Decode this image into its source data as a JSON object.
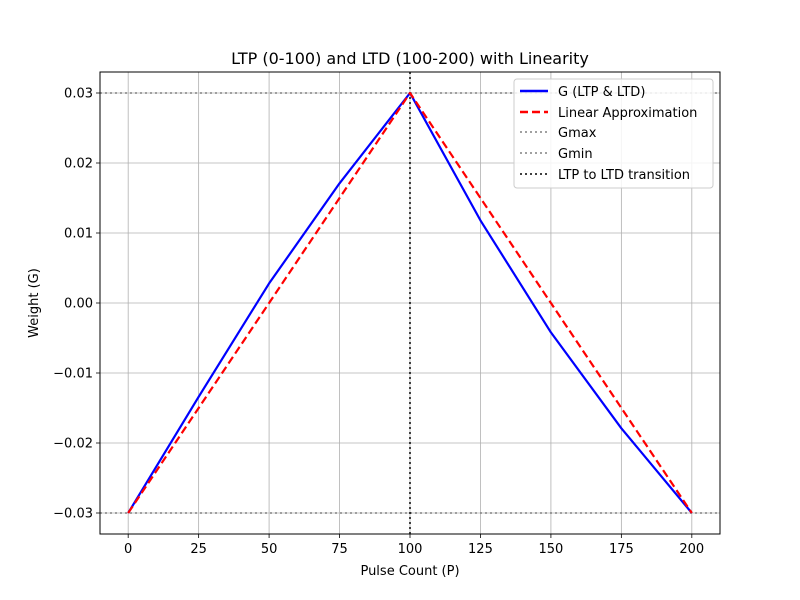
{
  "chart_data": {
    "type": "line",
    "title": "LTP (0-100) and LTD (100-200) with Linearity",
    "xlabel": "Pulse Count (P)",
    "ylabel": "Weight (G)",
    "xlim": [
      -10,
      210
    ],
    "ylim": [
      -0.033,
      0.033
    ],
    "xticks": [
      0,
      25,
      50,
      75,
      100,
      125,
      150,
      175,
      200
    ],
    "xtick_labels": [
      "0",
      "25",
      "50",
      "75",
      "100",
      "125",
      "150",
      "175",
      "200"
    ],
    "yticks": [
      -0.03,
      -0.02,
      -0.01,
      0.0,
      0.01,
      0.02,
      0.03
    ],
    "ytick_labels": [
      "−0.03",
      "−0.02",
      "−0.01",
      "0.00",
      "0.01",
      "0.02",
      "0.03"
    ],
    "grid": true,
    "legend_position": "top-right",
    "colors": {
      "g": "#0000ff",
      "linear": "#ff0000",
      "gmax": "#808080",
      "gmin": "#808080",
      "transition": "#000000"
    },
    "series": [
      {
        "name": "G (LTP & LTD)",
        "x": [
          0,
          25,
          50,
          75,
          100,
          125,
          150,
          175,
          200
        ],
        "y": [
          -0.03,
          -0.0134,
          0.0028,
          0.0171,
          0.03,
          0.0118,
          -0.0042,
          -0.0179,
          -0.03
        ]
      },
      {
        "name": "Linear Approximation",
        "x": [
          0,
          100,
          200
        ],
        "y": [
          -0.03,
          0.03,
          -0.03
        ]
      }
    ],
    "hlines": [
      {
        "name": "Gmax",
        "y": 0.03
      },
      {
        "name": "Gmin",
        "y": -0.03
      }
    ],
    "vlines": [
      {
        "name": "LTP to LTD transition",
        "x": 100
      }
    ]
  }
}
